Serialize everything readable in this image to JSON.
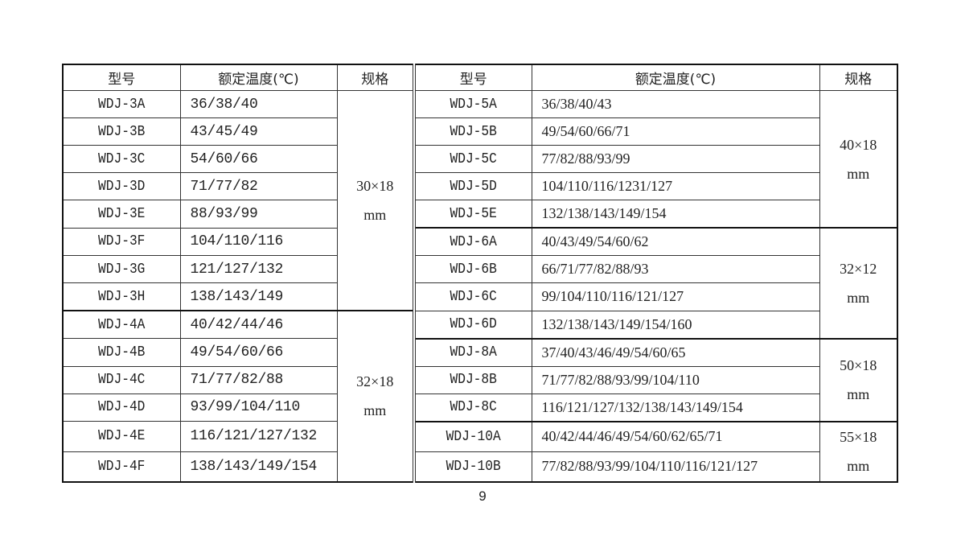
{
  "headers": {
    "left": [
      "型号",
      "额定温度(℃)",
      "规格"
    ],
    "right": [
      "型号",
      "额定温度(℃)",
      "规格"
    ]
  },
  "left_rows": [
    {
      "model": "WDJ-3A",
      "temps": "36/38/40"
    },
    {
      "model": "WDJ-3B",
      "temps": "43/45/49"
    },
    {
      "model": "WDJ-3C",
      "temps": "54/60/66"
    },
    {
      "model": "WDJ-3D",
      "temps": "71/77/82"
    },
    {
      "model": "WDJ-3E",
      "temps": "88/93/99"
    },
    {
      "model": "WDJ-3F",
      "temps": "104/110/116"
    },
    {
      "model": "WDJ-3G",
      "temps": "121/127/132"
    },
    {
      "model": "WDJ-3H",
      "temps": "138/143/149"
    },
    {
      "model": "WDJ-4A",
      "temps": "40/42/44/46"
    },
    {
      "model": "WDJ-4B",
      "temps": "49/54/60/66"
    },
    {
      "model": "WDJ-4C",
      "temps": "71/77/82/88"
    },
    {
      "model": "WDJ-4D",
      "temps": "93/99/104/110"
    },
    {
      "model": "WDJ-4E",
      "temps": "116/121/127/132"
    },
    {
      "model": "WDJ-4F",
      "temps": "138/143/149/154"
    }
  ],
  "left_specs": [
    {
      "size": "30×18",
      "unit": "mm",
      "rows": 8
    },
    {
      "size": "32×18",
      "unit": "mm",
      "rows": 6
    }
  ],
  "right_rows": [
    {
      "model": "WDJ-5A",
      "temps": "36/38/40/43"
    },
    {
      "model": "WDJ-5B",
      "temps": "49/54/60/66/71"
    },
    {
      "model": "WDJ-5C",
      "temps": "77/82/88/93/99"
    },
    {
      "model": "WDJ-5D",
      "temps": "104/110/116/1231/127"
    },
    {
      "model": "WDJ-5E",
      "temps": "132/138/143/149/154"
    },
    {
      "model": "WDJ-6A",
      "temps": "40/43/49/54/60/62"
    },
    {
      "model": "WDJ-6B",
      "temps": "66/71/77/82/88/93"
    },
    {
      "model": "WDJ-6C",
      "temps": "99/104/110/116/121/127"
    },
    {
      "model": "WDJ-6D",
      "temps": "132/138/143/149/154/160"
    },
    {
      "model": "WDJ-8A",
      "temps": "37/40/43/46/49/54/60/65"
    },
    {
      "model": "WDJ-8B",
      "temps": "71/77/82/88/93/99/104/110"
    },
    {
      "model": "WDJ-8C",
      "temps": "116/121/127/132/138/143/149/154"
    },
    {
      "model": "WDJ-10A",
      "temps": "40/42/44/46/49/54/60/62/65/71"
    },
    {
      "model": "WDJ-10B",
      "temps": "77/82/88/93/99/104/110/116/121/127"
    }
  ],
  "right_specs": [
    {
      "size": "40×18",
      "unit": "mm",
      "rows": 5
    },
    {
      "size": "32×12",
      "unit": "mm",
      "rows": 4
    },
    {
      "size": "50×18",
      "unit": "mm",
      "rows": 3
    },
    {
      "size": "55×18",
      "unit": "mm",
      "rows": 2
    }
  ],
  "page_number": "9"
}
